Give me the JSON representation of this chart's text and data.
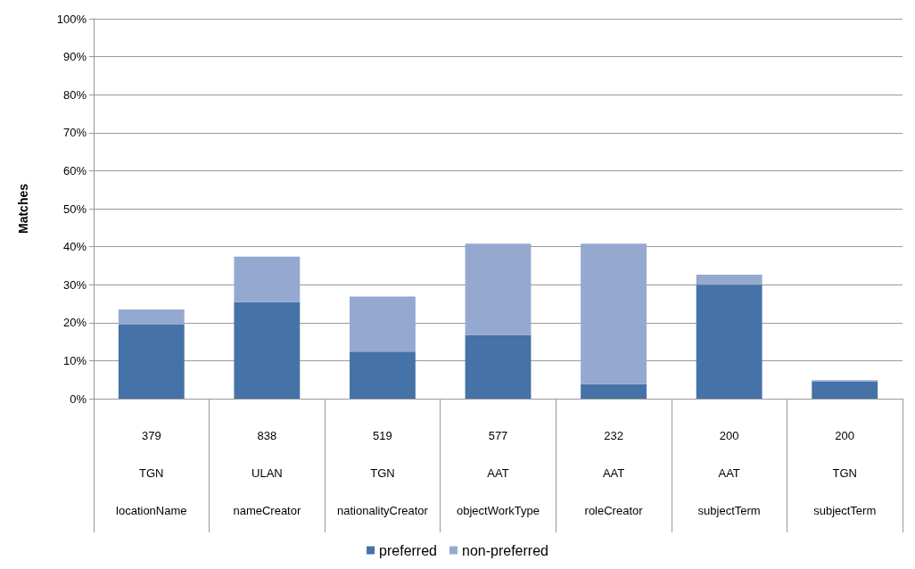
{
  "chart_data": {
    "type": "bar",
    "stacked": true,
    "ylabel": "Matches",
    "categories": [
      "379\nTGN\nlocationName",
      "838\nULAN\nnameCreator",
      "519\nTGN\nnationalityCreator",
      "577\nAAT\nobjectWorkType",
      "232\nAAT\nroleCreator",
      "200\nAAT\nsubjectTerm",
      "200\nTGN\nsubjectTerm"
    ],
    "series": [
      {
        "name": "preferred",
        "color": "#4572a7",
        "values": [
          19.5,
          25.4,
          12.4,
          16.8,
          3.8,
          30.0,
          4.6
        ]
      },
      {
        "name": "non-preferred",
        "color": "#95a9d0",
        "values": [
          4.0,
          12.0,
          14.5,
          24.0,
          37.0,
          2.6,
          0.3
        ]
      }
    ],
    "ylim": [
      0,
      100
    ],
    "yticks": [
      {
        "value": 0,
        "label": "0%"
      },
      {
        "value": 10,
        "label": "10%"
      },
      {
        "value": 20,
        "label": "20%"
      },
      {
        "value": 30,
        "label": "30%"
      },
      {
        "value": 40,
        "label": "40%"
      },
      {
        "value": 50,
        "label": "50%"
      },
      {
        "value": 60,
        "label": "60%"
      },
      {
        "value": 70,
        "label": "70%"
      },
      {
        "value": 80,
        "label": "80%"
      },
      {
        "value": 90,
        "label": "90%"
      },
      {
        "value": 100,
        "label": "100%"
      }
    ],
    "grid": "y",
    "legend": "bottom"
  }
}
